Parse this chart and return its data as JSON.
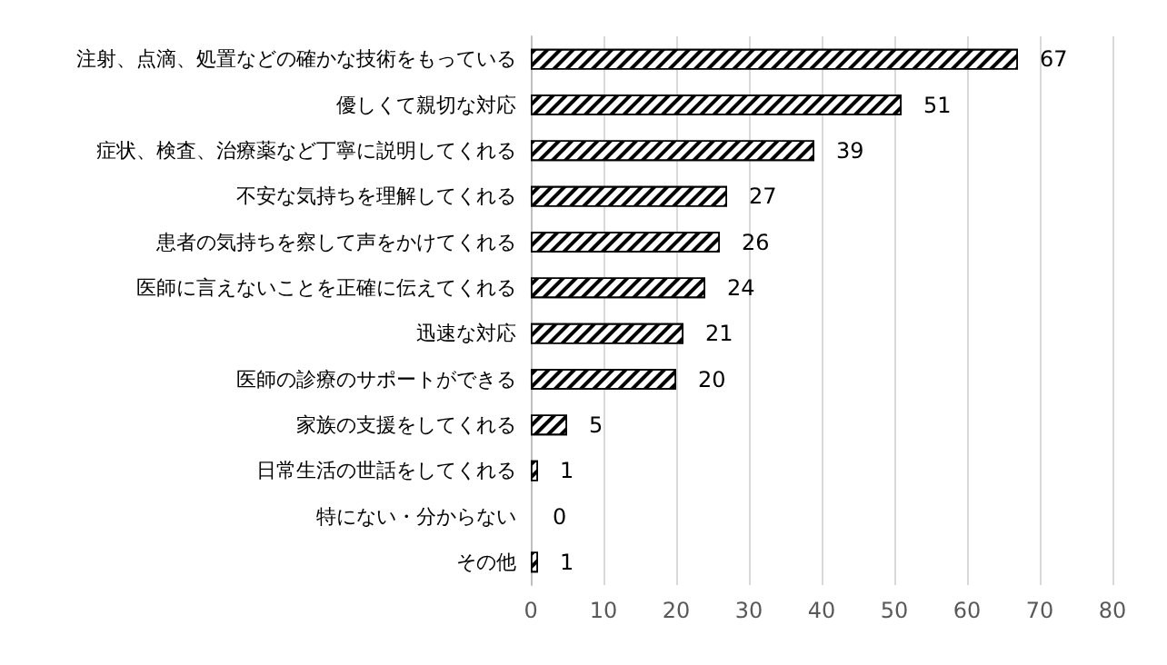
{
  "chart_data": {
    "type": "bar",
    "orientation": "horizontal",
    "categories": [
      "注射、点滴、処置などの確かな技術をもっている",
      "優しくて親切な対応",
      "症状、検査、治療薬など丁寧に説明してくれる",
      "不安な気持ちを理解してくれる",
      "患者の気持ちを察して声をかけてくれる",
      "医師に言えないことを正確に伝えてくれる",
      "迅速な対応",
      "医師の診療のサポートができる",
      "家族の支援をしてくれる",
      "日常生活の世話をしてくれる",
      "特にない・分からない",
      "その他"
    ],
    "values": [
      67,
      51,
      39,
      27,
      26,
      24,
      21,
      20,
      5,
      1,
      0,
      1
    ],
    "color": "#ffffff",
    "xlim": [
      0,
      80
    ],
    "xticks": [
      0,
      10,
      20,
      30,
      40,
      50,
      60,
      70,
      80
    ],
    "grid": "x",
    "data_labels": true
  }
}
